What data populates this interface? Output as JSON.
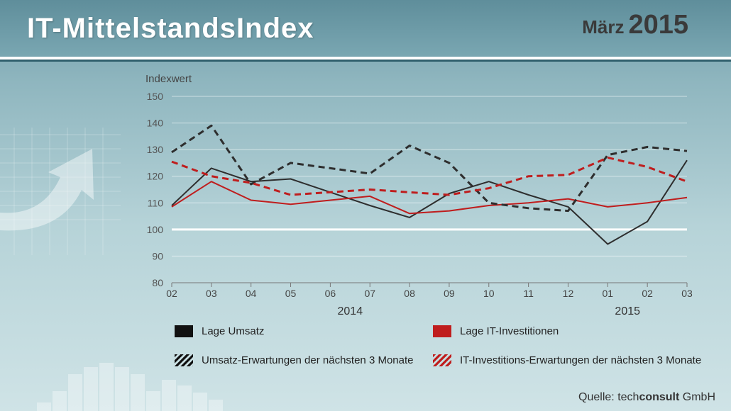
{
  "header": {
    "title": "IT-MittelstandsIndex",
    "month": "März",
    "year": "2015"
  },
  "source": {
    "prefix": "Quelle: tech",
    "bold": "consult",
    "suffix": " GmbH"
  },
  "chart_data": {
    "type": "line",
    "ylabel": "Indexwert",
    "ylim": [
      80,
      150
    ],
    "yticks": [
      80,
      90,
      100,
      110,
      120,
      130,
      140,
      150
    ],
    "categories": [
      "02",
      "03",
      "04",
      "05",
      "06",
      "07",
      "08",
      "09",
      "10",
      "11",
      "12",
      "01",
      "02",
      "03"
    ],
    "year_labels": [
      {
        "label": "2014",
        "center_index": 4.5
      },
      {
        "label": "2015",
        "center_index": 11.5
      }
    ],
    "reference_line": 100,
    "grid": true,
    "series": [
      {
        "name": "Lage Umsatz",
        "color": "#2e2e2e",
        "dashed": false,
        "values": [
          109,
          123,
          118,
          119,
          114,
          109,
          104.5,
          113.5,
          118,
          113,
          108.5,
          94.5,
          103,
          126
        ]
      },
      {
        "name": "Lage IT-Investitionen",
        "color": "#bf1d1d",
        "dashed": false,
        "values": [
          108.5,
          118,
          111,
          109.5,
          111,
          112.5,
          106,
          107,
          109,
          110,
          111.5,
          108.5,
          110,
          112
        ]
      },
      {
        "name": "Umsatz-Erwartungen der nächsten 3 Monate",
        "color": "#2e2e2e",
        "dashed": true,
        "values": [
          129,
          139,
          117,
          125,
          123,
          121,
          131.5,
          125,
          110,
          108,
          107,
          128,
          131,
          129.5
        ]
      },
      {
        "name": "IT-Investitions-Erwartungen der nächsten 3 Monate",
        "color": "#bf1d1d",
        "dashed": true,
        "values": [
          125.5,
          120,
          117.5,
          113,
          114,
          115,
          114,
          113,
          115.5,
          120,
          120.5,
          127,
          123.5,
          118
        ]
      }
    ]
  }
}
